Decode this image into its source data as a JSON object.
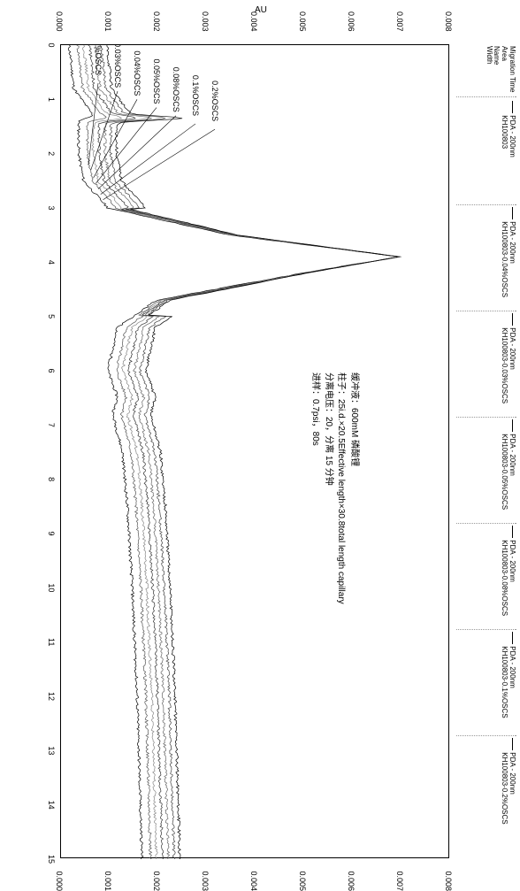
{
  "chart": {
    "type": "line",
    "background_color": "#ffffff",
    "border_color": "#000000",
    "x_axis": {
      "min": 0,
      "max": 15,
      "step": 1,
      "minor_step": 0.5,
      "ticks": [
        0,
        1,
        2,
        3,
        4,
        5,
        6,
        7,
        8,
        9,
        10,
        11,
        12,
        13,
        14,
        15
      ]
    },
    "y_axis": {
      "min": 0.0,
      "max": 0.008,
      "step": 0.001,
      "ticks": [
        "0.000",
        "0.001",
        "0.002",
        "0.003",
        "0.004",
        "0.005",
        "0.006",
        "0.007",
        "0.008"
      ],
      "title_left": "AU",
      "title_right": "AU"
    },
    "series_colors": [
      "#000000",
      "#333333",
      "#555555",
      "#777777",
      "#888888",
      "#999999",
      "#aaaaaa"
    ],
    "series": [
      {
        "name": "0.0%OSCS",
        "offset": 0.0,
        "color": "#000000"
      },
      {
        "name": "0.03%OSCS",
        "offset": 0.0003,
        "color": "#555555"
      },
      {
        "name": "0.04%OSCS",
        "offset": 0.0005,
        "color": "#888888"
      },
      {
        "name": "0.05%OSCS",
        "offset": 0.0007,
        "color": "#333333"
      },
      {
        "name": "0.08%OSCS",
        "offset": 0.0009,
        "color": "#666666"
      },
      {
        "name": "0.1%OSCS",
        "offset": 0.0011,
        "color": "#444444"
      },
      {
        "name": "0.2%OSCS",
        "offset": 0.0013,
        "color": "#000000"
      }
    ],
    "base_curve": [
      [
        0,
        0.0002
      ],
      [
        0.8,
        0.0003
      ],
      [
        1.3,
        0.0007
      ],
      [
        1.4,
        0.0004
      ],
      [
        2.0,
        0.0004
      ],
      [
        2.5,
        0.0005
      ],
      [
        3.0,
        0.001
      ],
      [
        3.5,
        0.0035
      ],
      [
        3.9,
        0.007
      ],
      [
        4.2,
        0.005
      ],
      [
        4.7,
        0.002
      ],
      [
        5.2,
        0.0012
      ],
      [
        6.0,
        0.001
      ],
      [
        6.5,
        0.0012
      ],
      [
        6.8,
        0.0011
      ],
      [
        7.5,
        0.0013
      ],
      [
        8.5,
        0.0014
      ],
      [
        10,
        0.0015
      ],
      [
        12,
        0.0016
      ],
      [
        15,
        0.0017
      ]
    ],
    "callouts": [
      {
        "label": "0.2%OSCS",
        "tx": 1.55,
        "ty": 0.0032,
        "px": 2.85,
        "py": 0.0009
      },
      {
        "label": "0.1%OSCS",
        "tx": 1.45,
        "ty": 0.0028,
        "px": 2.75,
        "py": 0.00085
      },
      {
        "label": "0.08%OSCS",
        "tx": 1.3,
        "ty": 0.0024,
        "px": 2.65,
        "py": 0.0008
      },
      {
        "label": "0.05%OSCS",
        "tx": 1.15,
        "ty": 0.002,
        "px": 2.55,
        "py": 0.00075
      },
      {
        "label": "0.04%OSCS",
        "tx": 1.0,
        "ty": 0.0016,
        "px": 2.45,
        "py": 0.0007
      },
      {
        "label": "0.03%OSCS",
        "tx": 0.85,
        "ty": 0.0012,
        "px": 2.3,
        "py": 0.00065
      },
      {
        "label": "0.0%OSCS",
        "tx": 0.7,
        "ty": 0.0008,
        "px": 2.2,
        "py": 0.0006
      }
    ]
  },
  "legend_meta": {
    "left_block": {
      "lines": [
        "Migration Time",
        "Area",
        "Name",
        "Width"
      ]
    },
    "groups": [
      {
        "top": "PDA - 200nm",
        "bottom": "KH100803"
      },
      {
        "top": "PDA - 200nm",
        "bottom": "KH100803-0.04%OSCS"
      },
      {
        "top": "PDA - 200nm",
        "bottom": "KH100803-0.03%OSCS"
      },
      {
        "top": "PDA - 200nm",
        "bottom": "KH100803-0.05%OSCS"
      },
      {
        "top": "PDA - 200nm",
        "bottom": "KH100803-0.08%OSCS"
      },
      {
        "top": "PDA - 200nm",
        "bottom": "KH100803-0.1%OSCS"
      },
      {
        "top": "PDA - 200nm",
        "bottom": "KH100803-0.2%OSCS"
      }
    ]
  },
  "param_box": {
    "line1": "缓冲液：600mM 磷酸锂",
    "line2": "柱子：25i.d.×20.5Effective length×30.8total length capillary",
    "line3": "分离电压：20，分离 15 分钟",
    "line4": "进样：0.7psi，80s"
  }
}
